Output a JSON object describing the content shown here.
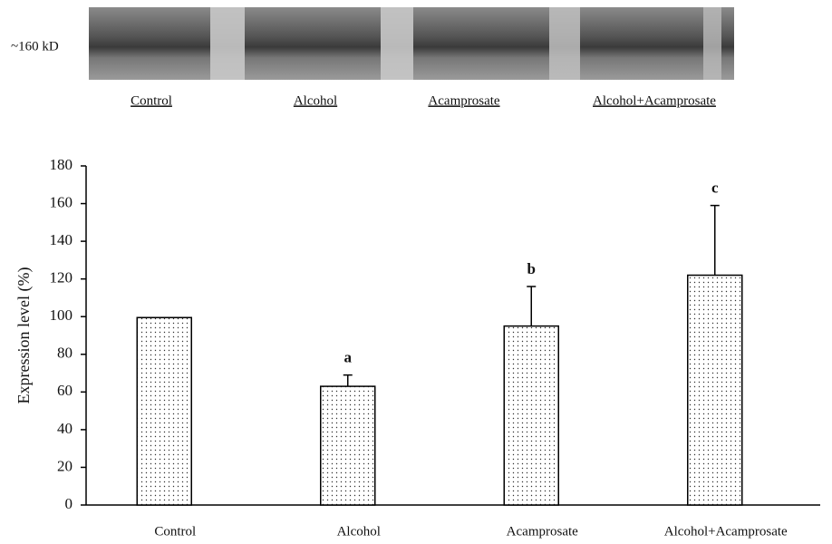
{
  "blot": {
    "marker": "~160 kD",
    "lanes": [
      "Control",
      "Alcohol",
      "Acamprosate",
      "Alcohol+Acamprosate"
    ]
  },
  "chart_data": {
    "type": "bar",
    "y_label": "Expression level  (%)",
    "categories": [
      "Control",
      "Alcohol",
      "Acamprosate",
      "Alcohol+Acamprosate"
    ],
    "values": [
      99.5,
      63,
      95,
      122
    ],
    "errors": [
      0,
      6,
      21,
      37
    ],
    "annotations": [
      null,
      "a",
      "b",
      "c"
    ],
    "ylim": [
      0,
      180
    ],
    "yticks": [
      0,
      20,
      40,
      60,
      80,
      100,
      120,
      140,
      160,
      180
    ],
    "grid": false
  }
}
